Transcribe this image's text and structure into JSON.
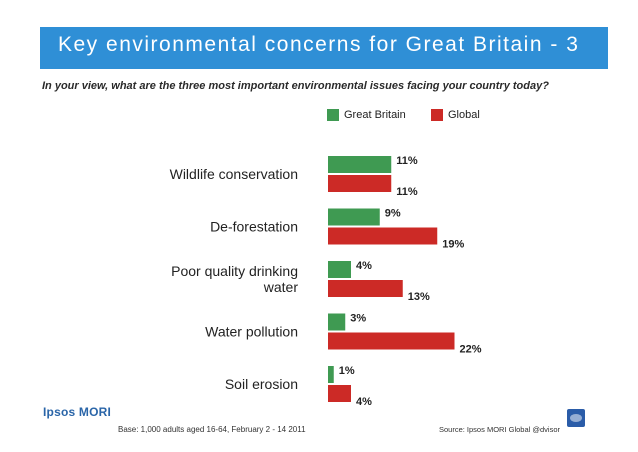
{
  "header": {
    "title": "Key environmental concerns for Great Britain - 3",
    "question": "In your view, what are the three most important environmental issues facing your country today?"
  },
  "legend": {
    "items": [
      {
        "label": "Great Britain",
        "color": "#3f9a52"
      },
      {
        "label": "Global",
        "color": "#cc2a26"
      }
    ]
  },
  "chart_data": {
    "type": "bar",
    "orientation": "horizontal",
    "categories": [
      [
        "Wildlife conservation"
      ],
      [
        "De-forestation"
      ],
      [
        "Poor quality drinking",
        "water"
      ],
      [
        "Water pollution"
      ],
      [
        "Soil erosion"
      ]
    ],
    "series": [
      {
        "name": "Great Britain",
        "values": [
          11,
          9,
          4,
          3,
          1
        ],
        "labels": [
          "11%",
          "9%",
          "4%",
          "3%",
          "1%"
        ],
        "color": "#3f9a52"
      },
      {
        "name": "Global",
        "values": [
          11,
          19,
          13,
          22,
          4
        ],
        "labels": [
          "11%",
          "19%",
          "13%",
          "22%",
          "4%"
        ],
        "color": "#cc2a26"
      }
    ],
    "unit": "%",
    "legend_position": "top-right",
    "grid": false
  },
  "footer": {
    "logo_text": "Ipsos MORI",
    "base": "Base: 1,000 adults aged 16-64, February 2 - 14 2011",
    "source": "Source: Ipsos MORI Global @dvisor"
  }
}
